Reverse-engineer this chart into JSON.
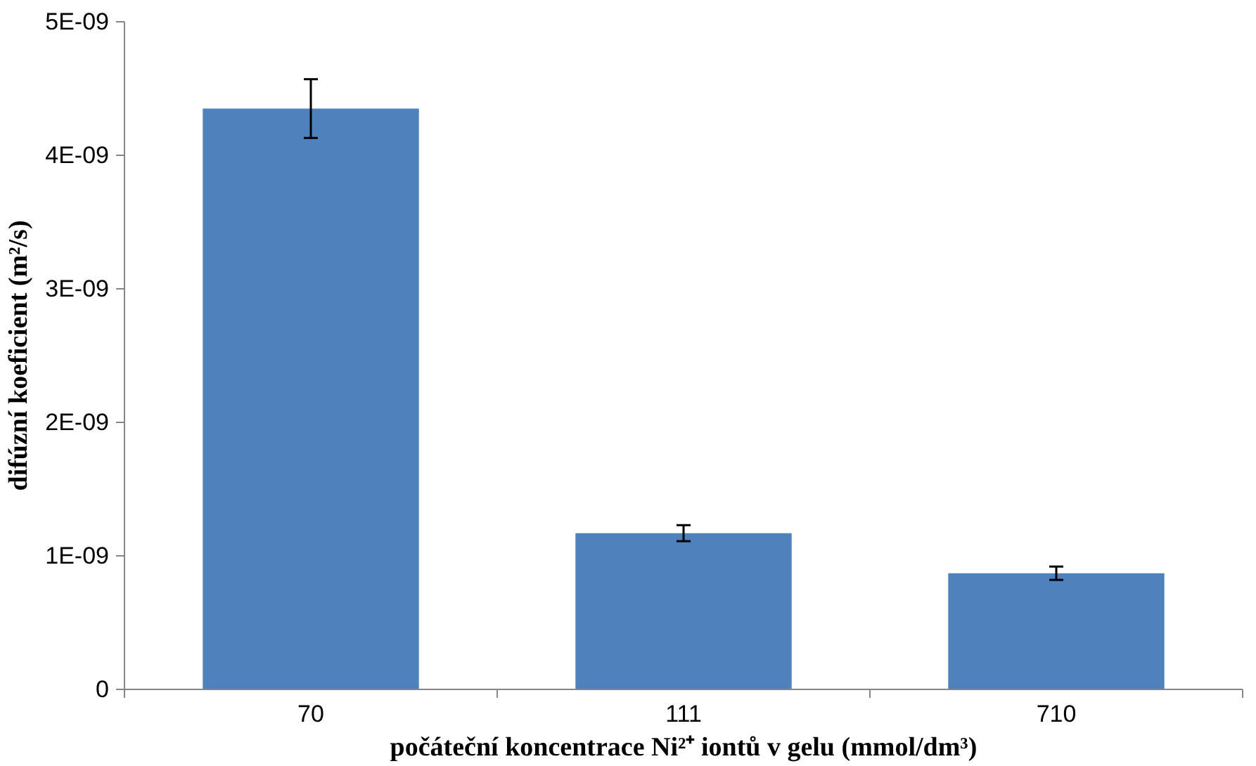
{
  "chart_data": {
    "type": "bar",
    "xlabel": "počáteční koncentrace Ni²⁺ iontů v gelu (mmol/dm³)",
    "ylabel": "difúzní koeficient (m²/s)",
    "categories": [
      "70",
      "111",
      "710"
    ],
    "values": [
      4.35e-09,
      1.17e-09,
      8.7e-10
    ],
    "errors": [
      2.2e-10,
      6e-11,
      5e-11
    ],
    "color": "#4f81bd",
    "ylim": [
      0,
      5e-09
    ],
    "yticks": [
      0,
      {
        "value": 1e-09,
        "label": "1E-09"
      },
      {
        "value": 2e-09,
        "label": "2E-09"
      },
      {
        "value": 3e-09,
        "label": "3E-09"
      },
      {
        "value": 4e-09,
        "label": "4E-09"
      },
      {
        "value": 5e-09,
        "label": "5E-09"
      }
    ],
    "grid": false
  }
}
